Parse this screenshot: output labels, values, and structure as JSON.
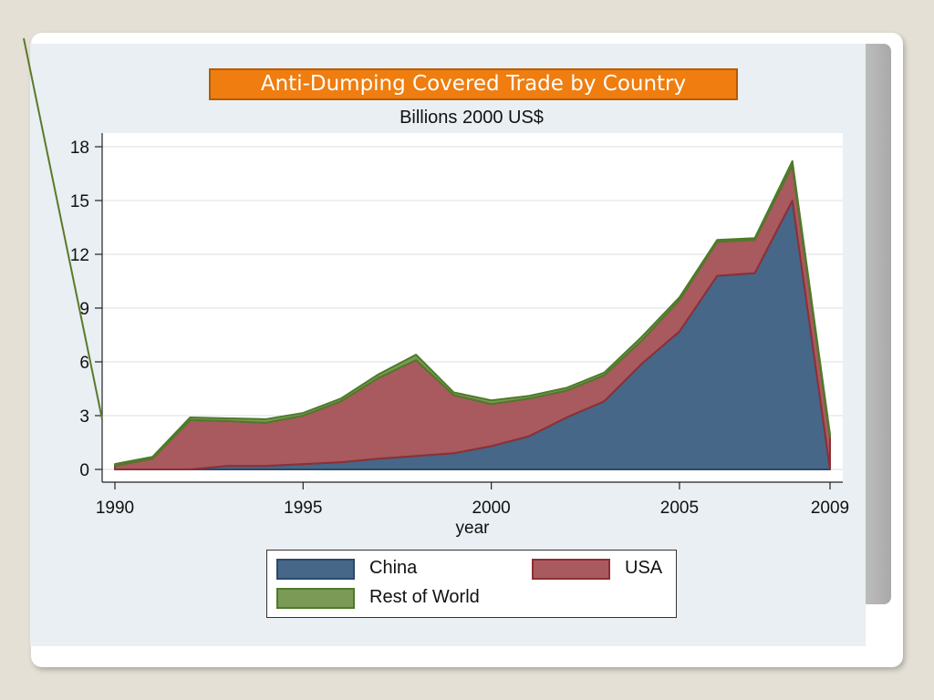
{
  "colors": {
    "china_fill": "#466788",
    "china_line": "#2b4a6b",
    "usa_fill": "#a85a5e",
    "usa_line": "#8e2f35",
    "row_fill": "#7a9a55",
    "row_line": "#4f7a2a",
    "title_bg": "#ef7d0f"
  },
  "chart_data": {
    "type": "area",
    "stacked": true,
    "title": "Anti-Dumping Covered Trade by Country",
    "subtitle": "Billions 2000 US$",
    "xlabel": "year",
    "ylabel": "",
    "x": [
      1990,
      1991,
      1992,
      1993,
      1994,
      1995,
      1996,
      1997,
      1998,
      1999,
      2000,
      2001,
      2002,
      2003,
      2004,
      2005,
      2006,
      2007,
      2008,
      2009
    ],
    "series": [
      {
        "name": "China",
        "values": [
          0.0,
          0.0,
          0.0,
          0.2,
          0.2,
          0.3,
          0.4,
          0.6,
          0.75,
          0.9,
          1.3,
          1.85,
          2.9,
          3.8,
          5.9,
          7.7,
          10.8,
          10.95,
          15.0,
          0.0
        ]
      },
      {
        "name": "USA",
        "values": [
          0.2,
          0.6,
          2.75,
          2.5,
          2.4,
          2.7,
          3.4,
          4.5,
          5.35,
          3.25,
          2.35,
          2.1,
          1.5,
          1.45,
          1.3,
          1.75,
          1.9,
          1.85,
          1.95,
          1.8
        ]
      },
      {
        "name": "Rest of World",
        "values": [
          0.1,
          0.1,
          0.15,
          0.15,
          0.2,
          0.15,
          0.15,
          0.2,
          0.3,
          0.15,
          0.2,
          0.15,
          0.15,
          0.15,
          0.2,
          0.15,
          0.1,
          0.1,
          0.25,
          0.15
        ]
      }
    ],
    "ylim": [
      0,
      18
    ],
    "yticks": [
      0,
      3,
      6,
      9,
      12,
      15,
      18
    ],
    "xticks": [
      1990,
      1995,
      2000,
      2005,
      2009
    ],
    "grid": true,
    "legend": "bottom"
  }
}
